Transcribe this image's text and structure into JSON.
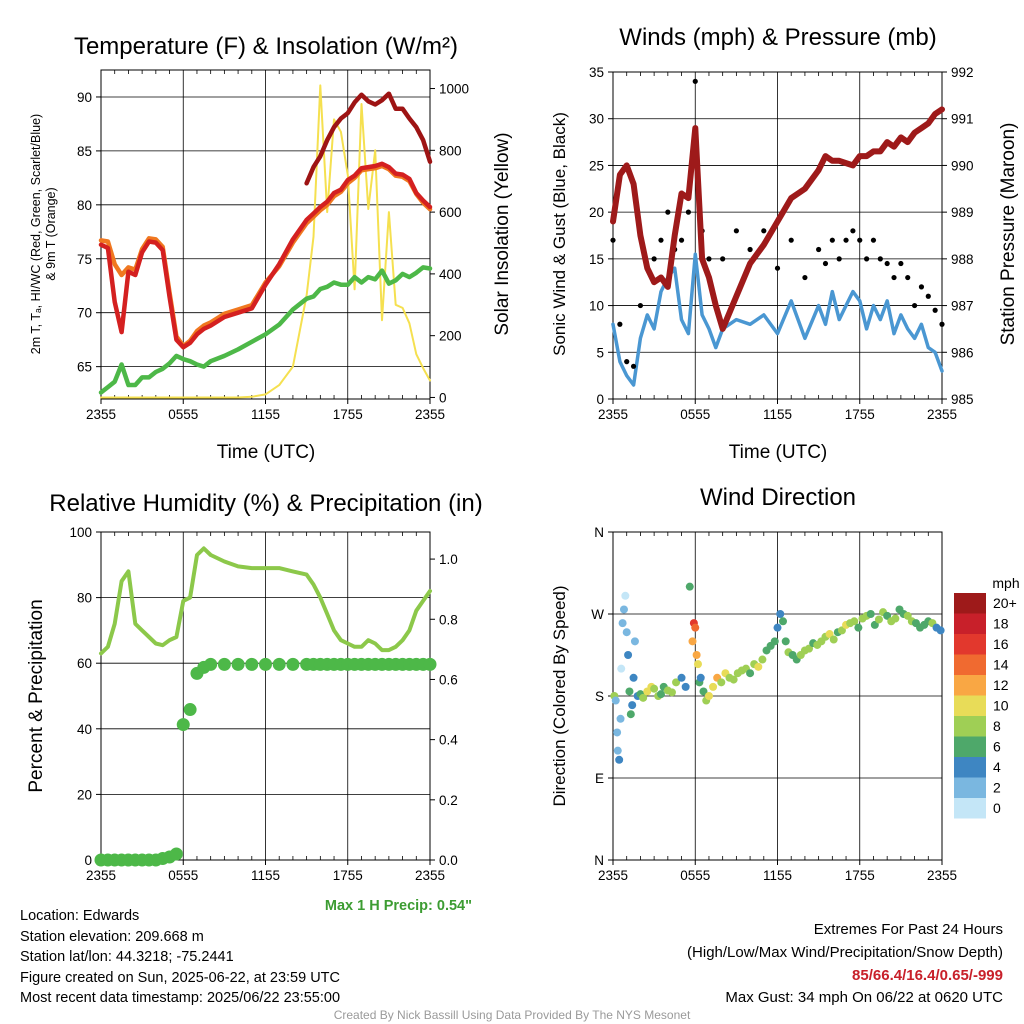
{
  "panels": {
    "temp": {
      "title": "Temperature (F) & Insolation (W/m²)",
      "xlabel": "Time (UTC)",
      "ylabel_left_lines": [
        "2m T, Tₐ, HI/WC (Red, Green, Scarlet/Blue)",
        "& 9m T (Orange)"
      ],
      "ylabel_right": "Solar Insolation (Yellow)"
    },
    "wind": {
      "title": "Winds (mph) & Pressure (mb)",
      "xlabel": "Time (UTC)",
      "ylabel_left": "Sonic Wind & Gust (Blue, Black)",
      "ylabel_right": "Station Pressure (Maroon)"
    },
    "rh": {
      "title": "Relative Humidity (%) & Precipitation (in)",
      "ylabel_left": "Percent & Precipitation",
      "annotation": "Max 1 H Precip: 0.54\""
    },
    "dir": {
      "title": "Wind Direction",
      "ylabel_left": "Direction (Colored By Speed)",
      "colorbar_title": "mph",
      "colorbar_labels": [
        "20+",
        "18",
        "16",
        "14",
        "12",
        "10",
        "8",
        "6",
        "4",
        "2",
        "0"
      ],
      "colorbar_colors": [
        "#9e1a1a",
        "#c8202a",
        "#e2382d",
        "#f06a30",
        "#f9a744",
        "#e8dc58",
        "#9fcf55",
        "#4ea86a",
        "#3e86c2",
        "#7ab7e0",
        "#c4e6f7"
      ]
    }
  },
  "info": {
    "location": "Location: Edwards",
    "elevation": "Station elevation: 209.668 m",
    "latlon": "Station lat/lon: 44.3218; -75.2441",
    "created": "Figure created on Sun, 2025-06-22, at 23:59 UTC",
    "recent": "Most recent data timestamp: 2025/06/22 23:55:00"
  },
  "extremes": {
    "title": "Extremes For Past 24 Hours",
    "subtitle": "(High/Low/Max Wind/Precipitation/Snow Depth)",
    "values": "85/66.4/16.4/0.65/-999",
    "gust": "Max Gust: 34 mph On 06/22 at 0620 UTC"
  },
  "credit": "Created By Nick Bassill Using Data Provided By The NYS Mesonet",
  "colors": {
    "red": "#d42020",
    "orange": "#f07820",
    "scarlet": "#9e1414",
    "green": "#4db848",
    "yellow": "#f5e050",
    "blue": "#4a97d2",
    "maroon": "#9e1a1a",
    "rh": "#8cc84a",
    "precip_green": "#4db848",
    "extreme_red": "#c8202a",
    "annot_green": "#3c9c32"
  },
  "chart_data": [
    {
      "type": "line",
      "title": "Temperature (F) & Insolation (W/m²)",
      "xlabel": "Time (UTC)",
      "x_ticks": [
        "2355",
        "0555",
        "1155",
        "1755",
        "2355"
      ],
      "y_left": {
        "ticks": [
          65,
          70,
          75,
          80,
          85,
          90
        ],
        "range": [
          62,
          92.5
        ]
      },
      "y_right": {
        "ticks": [
          0,
          200,
          400,
          600,
          800,
          1000
        ],
        "range": [
          -5,
          1060
        ]
      },
      "x_hours": [
        0,
        0.5,
        1,
        1.5,
        2,
        2.5,
        3,
        3.5,
        4,
        4.5,
        5,
        5.5,
        6,
        6.5,
        7,
        7.5,
        8,
        9,
        10,
        11,
        12,
        13,
        14,
        15,
        15.5,
        16,
        16.5,
        17,
        17.5,
        18,
        18.5,
        19,
        19.5,
        20,
        20.5,
        21,
        21.5,
        22,
        22.5,
        23,
        23.5,
        24
      ],
      "series": [
        {
          "name": "2m T (Red)",
          "axis": "left",
          "color": "red",
          "values": [
            76.3,
            76,
            71,
            68.2,
            73.8,
            73.5,
            75.6,
            76.6,
            76.5,
            75.8,
            71.5,
            67.5,
            66.8,
            67.2,
            68.0,
            68.5,
            68.8,
            69.6,
            70.0,
            70.4,
            72.6,
            74.5,
            76.8,
            78.6,
            79.2,
            79.8,
            80.3,
            81.1,
            81.4,
            82.3,
            82.7,
            83.4,
            83.5,
            83.6,
            83.8,
            83.5,
            82.9,
            82.8,
            82.4,
            81.1,
            80.4,
            79.8
          ]
        },
        {
          "name": "9m T (Orange)",
          "axis": "left",
          "color": "orange",
          "values": [
            76.7,
            76.6,
            74.5,
            73.5,
            74.2,
            74.0,
            75.9,
            76.9,
            76.8,
            76.1,
            71.9,
            67.8,
            66.9,
            67.4,
            68.3,
            68.8,
            69.1,
            69.9,
            70.3,
            70.7,
            72.8,
            74.3,
            76.5,
            78.3,
            78.9,
            79.5,
            80.0,
            80.8,
            81.2,
            82.0,
            82.5,
            83.2,
            83.3,
            83.4,
            83.6,
            83.3,
            82.7,
            82.6,
            82.2,
            81.0,
            80.2,
            79.6
          ]
        },
        {
          "name": "Td (Green)",
          "axis": "left",
          "color": "green",
          "values": [
            62.6,
            63.1,
            63.6,
            65.2,
            63.3,
            63.3,
            64.0,
            64.0,
            64.5,
            64.8,
            65.3,
            66.0,
            65.7,
            65.5,
            65.2,
            65.0,
            65.5,
            66.0,
            66.6,
            67.3,
            68.0,
            68.9,
            70.3,
            71.3,
            71.5,
            72.2,
            72.4,
            72.8,
            72.6,
            72.6,
            73.3,
            72.8,
            73.3,
            73.1,
            73.9,
            72.7,
            73.0,
            73.6,
            73.3,
            73.7,
            74.2,
            74.1
          ]
        },
        {
          "name": "HI (Scarlet)",
          "axis": "left",
          "color": "scarlet",
          "values": [
            null,
            null,
            null,
            null,
            null,
            null,
            null,
            null,
            null,
            null,
            null,
            null,
            null,
            null,
            null,
            null,
            null,
            null,
            null,
            null,
            null,
            null,
            null,
            82.0,
            83.5,
            84.5,
            86.0,
            87.2,
            88.0,
            88.5,
            89.5,
            90.2,
            89.6,
            89.3,
            89.7,
            90.3,
            88.9,
            88.9,
            88.0,
            87.2,
            86.0,
            84.0
          ]
        },
        {
          "name": "Solar Insolation (Yellow)",
          "axis": "right",
          "color": "yellow",
          "values": [
            0,
            0,
            0,
            0,
            0,
            0,
            0,
            0,
            0,
            0,
            0,
            0,
            0,
            0,
            0,
            0,
            0,
            0,
            0,
            2,
            10,
            40,
            100,
            330,
            520,
            1010,
            600,
            900,
            860,
            720,
            350,
            950,
            610,
            800,
            250,
            600,
            300,
            290,
            240,
            140,
            95,
            55
          ]
        }
      ]
    },
    {
      "type": "line",
      "title": "Winds (mph) & Pressure (mb)",
      "xlabel": "Time (UTC)",
      "x_ticks": [
        "2355",
        "0555",
        "1155",
        "1755",
        "2355"
      ],
      "y_left": {
        "ticks": [
          0,
          5,
          10,
          15,
          20,
          25,
          30,
          35
        ],
        "range": [
          0,
          35
        ]
      },
      "y_right": {
        "ticks": [
          985,
          986,
          987,
          988,
          989,
          990,
          991,
          992
        ],
        "range": [
          985,
          992
        ]
      },
      "x_hours": [
        0,
        0.5,
        1,
        1.5,
        2,
        2.5,
        3,
        3.5,
        4,
        4.5,
        5,
        5.5,
        6,
        6.5,
        7,
        7.5,
        8,
        9,
        10,
        11,
        12,
        13,
        14,
        15,
        15.5,
        16,
        16.5,
        17,
        17.5,
        18,
        18.5,
        19,
        19.5,
        20,
        20.5,
        21,
        21.5,
        22,
        22.5,
        23,
        23.5,
        24
      ],
      "series": [
        {
          "name": "Sonic Wind (Blue)",
          "axis": "left",
          "color": "blue",
          "values": [
            8,
            4,
            2.5,
            1.5,
            6.5,
            9,
            7.5,
            11.5,
            13,
            14,
            8.5,
            7,
            15.5,
            9,
            7.5,
            5.5,
            7.5,
            8.5,
            8,
            9,
            7,
            10.5,
            6.5,
            10,
            8,
            11.5,
            8.5,
            10,
            11.5,
            10.5,
            7.5,
            10,
            8.5,
            10.5,
            7,
            9,
            7.5,
            6.5,
            8,
            5.5,
            5,
            3
          ]
        },
        {
          "name": "Gust (Black)",
          "axis": "left",
          "color": "black",
          "values": [
            17,
            8,
            4,
            3.5,
            10,
            14,
            15,
            17,
            20,
            16,
            17,
            20,
            34,
            18,
            15,
            10,
            15,
            18,
            16,
            18,
            14,
            17,
            13,
            16,
            14.5,
            17,
            15,
            17,
            18,
            17,
            15,
            17,
            15,
            14.5,
            13,
            14.5,
            13,
            10,
            12,
            11,
            9.5,
            8
          ]
        },
        {
          "name": "Station Pressure (Maroon)",
          "axis": "right",
          "color": "maroon",
          "values": [
            988.8,
            989.8,
            990.0,
            989.6,
            988.5,
            987.8,
            987.5,
            987.6,
            987.4,
            988.5,
            989.4,
            989.3,
            990.8,
            988.0,
            987.6,
            987.0,
            986.5,
            987.2,
            987.9,
            988.3,
            988.8,
            989.3,
            989.5,
            989.9,
            990.2,
            990.1,
            990.1,
            990.05,
            990.0,
            990.2,
            990.2,
            990.3,
            990.3,
            990.5,
            990.4,
            990.6,
            990.5,
            990.7,
            990.8,
            990.9,
            991.1,
            991.2
          ]
        }
      ]
    },
    {
      "type": "line",
      "title": "Relative Humidity (%) & Precipitation (in)",
      "x_ticks": [
        "2355",
        "0555",
        "1155",
        "1755",
        "2355"
      ],
      "y_left": {
        "ticks": [
          0,
          20,
          40,
          60,
          80,
          100
        ],
        "range": [
          0,
          100
        ]
      },
      "y_right": {
        "ticks": [
          0.0,
          0.2,
          0.4,
          0.6,
          0.8,
          1.0
        ],
        "range": [
          0,
          1.09
        ]
      },
      "x_hours": [
        0,
        0.5,
        1,
        1.5,
        2,
        2.5,
        3,
        3.5,
        4,
        4.5,
        5,
        5.5,
        6,
        6.5,
        7,
        7.5,
        8,
        9,
        10,
        11,
        12,
        13,
        14,
        15,
        15.5,
        16,
        16.5,
        17,
        17.5,
        18,
        18.5,
        19,
        19.5,
        20,
        20.5,
        21,
        21.5,
        22,
        22.5,
        23,
        23.5,
        24
      ],
      "series": [
        {
          "name": "Relative Humidity",
          "axis": "left",
          "color": "rh",
          "values": [
            63,
            65,
            72,
            85,
            88,
            72,
            70,
            68,
            66,
            65.5,
            67,
            68,
            79,
            80,
            93,
            95,
            93,
            91,
            89.5,
            89,
            89,
            89,
            88,
            87,
            84,
            80,
            75,
            70,
            67,
            66,
            65,
            65,
            67,
            66,
            64,
            64,
            65,
            67,
            70,
            76,
            79,
            82
          ]
        },
        {
          "name": "Precipitation",
          "axis": "right",
          "color": "precip_green",
          "values": [
            0,
            0,
            0,
            0,
            0,
            0,
            0,
            0,
            0,
            0.005,
            0.01,
            0.02,
            0.45,
            0.5,
            0.62,
            0.64,
            0.65,
            0.65,
            0.65,
            0.65,
            0.65,
            0.65,
            0.65,
            0.65,
            0.65,
            0.65,
            0.65,
            0.65,
            0.65,
            0.65,
            0.65,
            0.65,
            0.65,
            0.65,
            0.65,
            0.65,
            0.65,
            0.65,
            0.65,
            0.65,
            0.65,
            0.65
          ]
        }
      ]
    },
    {
      "type": "scatter",
      "title": "Wind Direction",
      "x_ticks": [
        "2355",
        "0555",
        "1155",
        "1755",
        "2355"
      ],
      "y_ticks": [
        "N",
        "E",
        "S",
        "W",
        "N"
      ],
      "y_range_deg": [
        0,
        360
      ],
      "colorbar": {
        "title": "mph",
        "labels": [
          "20+",
          "18",
          "16",
          "14",
          "12",
          "10",
          "8",
          "6",
          "4",
          "2",
          "0"
        ]
      },
      "points_hours": [
        0.1,
        0.2,
        0.3,
        0.35,
        0.45,
        0.55,
        0.6,
        0.7,
        0.8,
        0.9,
        1.0,
        1.1,
        1.2,
        1.3,
        1.4,
        1.5,
        1.6,
        1.8,
        2.0,
        2.2,
        2.5,
        2.8,
        3.0,
        3.3,
        3.5,
        3.7,
        4.0,
        4.3,
        4.6,
        5.0,
        5.3,
        5.6,
        5.8,
        5.9,
        6.0,
        6.1,
        6.2,
        6.3,
        6.4,
        6.6,
        6.8,
        7.0,
        7.3,
        7.6,
        7.9,
        8.2,
        8.5,
        8.8,
        9.1,
        9.4,
        9.7,
        10.0,
        10.3,
        10.6,
        10.9,
        11.2,
        11.5,
        11.8,
        12.0,
        12.2,
        12.4,
        12.6,
        12.8,
        13.1,
        13.4,
        13.7,
        14.0,
        14.3,
        14.6,
        14.9,
        15.2,
        15.5,
        15.8,
        16.1,
        16.4,
        16.7,
        17.0,
        17.3,
        17.6,
        17.9,
        18.2,
        18.5,
        18.8,
        19.1,
        19.4,
        19.7,
        20.0,
        20.3,
        20.6,
        20.9,
        21.2,
        21.5,
        21.8,
        22.1,
        22.4,
        22.7,
        23.0,
        23.3,
        23.6,
        23.9
      ],
      "points_deg": [
        180,
        175,
        140,
        120,
        110,
        155,
        210,
        260,
        275,
        290,
        250,
        225,
        185,
        160,
        170,
        200,
        240,
        180,
        182,
        178,
        185,
        190,
        188,
        180,
        182,
        190,
        186,
        184,
        195,
        200,
        190,
        300,
        240,
        260,
        255,
        225,
        215,
        195,
        200,
        185,
        175,
        180,
        190,
        200,
        195,
        205,
        200,
        198,
        205,
        208,
        210,
        205,
        215,
        212,
        220,
        230,
        235,
        240,
        255,
        270,
        262,
        240,
        228,
        225,
        220,
        225,
        230,
        232,
        238,
        236,
        240,
        245,
        248,
        242,
        250,
        252,
        258,
        260,
        262,
        255,
        265,
        268,
        270,
        258,
        264,
        272,
        268,
        262,
        265,
        275,
        270,
        268,
        262,
        260,
        255,
        258,
        262,
        260,
        255,
        252
      ],
      "points_mph": [
        8,
        2,
        1,
        2,
        3,
        1,
        0,
        1,
        2,
        0,
        1,
        3,
        5,
        6,
        4,
        3,
        2,
        4,
        6,
        7,
        9,
        10,
        8,
        7,
        6,
        5,
        7,
        8,
        7,
        4,
        3,
        6,
        12,
        16,
        14,
        11,
        9,
        6,
        4,
        5,
        7,
        9,
        10,
        11,
        8,
        9,
        7,
        7,
        8,
        7,
        8,
        6,
        7,
        9,
        7,
        6,
        5,
        5,
        4,
        3,
        5,
        6,
        7,
        6,
        5,
        7,
        8,
        7,
        6,
        8,
        7,
        8,
        9,
        7,
        6,
        8,
        9,
        8,
        7,
        6,
        8,
        7,
        6,
        5,
        7,
        8,
        6,
        7,
        8,
        6,
        5,
        7,
        8,
        6,
        6,
        5,
        6,
        7,
        4,
        4
      ]
    }
  ]
}
